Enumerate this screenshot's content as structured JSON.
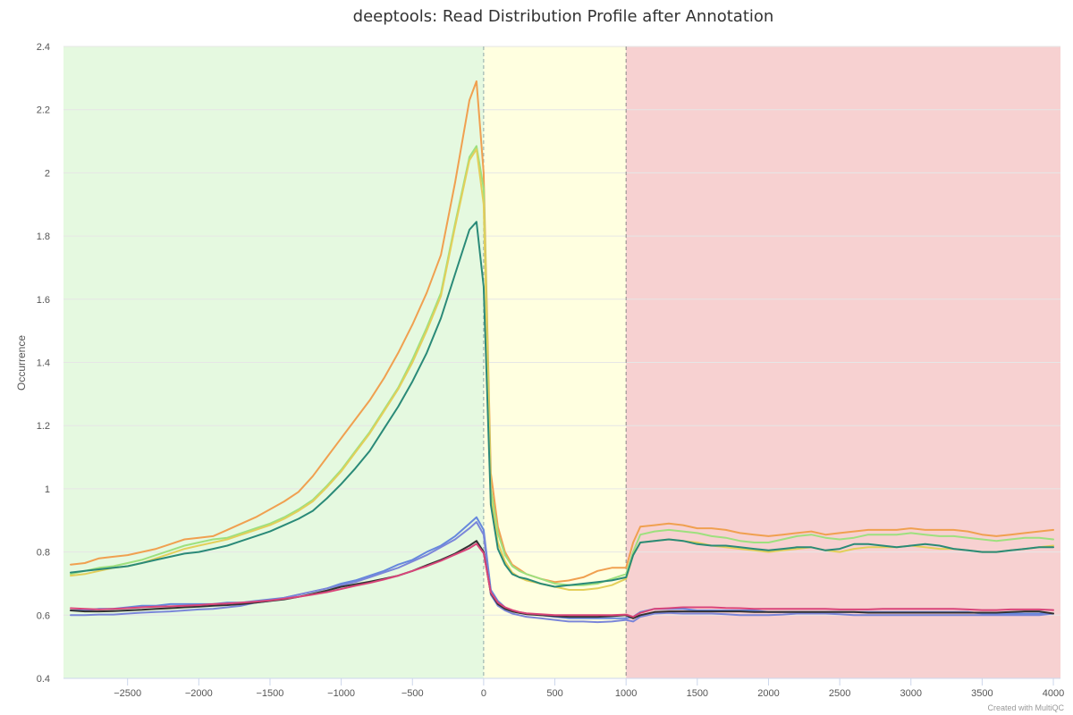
{
  "chart_data": {
    "type": "line",
    "title": "deeptools: Read Distribution Profile after Annotation",
    "xlabel": "",
    "ylabel": "Occurrence",
    "credit": "Created with MultiQC",
    "xlim": [
      -2950,
      4050
    ],
    "ylim": [
      0.4,
      2.4
    ],
    "x_ticks": [
      -2500,
      -2000,
      -1500,
      -1000,
      -500,
      0,
      500,
      1000,
      1500,
      2000,
      2500,
      3000,
      3500,
      4000
    ],
    "y_ticks": [
      0.4,
      0.6,
      0.8,
      1,
      1.2,
      1.4,
      1.6,
      1.8,
      2,
      2.2,
      2.4
    ],
    "grid": true,
    "legend": "none",
    "plot_bands": [
      {
        "from": -2950,
        "to": 0,
        "color": "#e5f9e0"
      },
      {
        "from": 0,
        "to": 1000,
        "color": "#ffffe0"
      },
      {
        "from": 1000,
        "to": 4050,
        "color": "#f7d1d1"
      }
    ],
    "plot_lines": [
      {
        "value": 0,
        "color": "#8fa8a8",
        "dash": "dashed"
      },
      {
        "value": 1000,
        "color": "#8a8a8a",
        "dash": "dashed"
      }
    ],
    "x": [
      -2900,
      -2800,
      -2700,
      -2600,
      -2500,
      -2400,
      -2300,
      -2200,
      -2100,
      -2000,
      -1900,
      -1800,
      -1700,
      -1600,
      -1500,
      -1400,
      -1300,
      -1200,
      -1100,
      -1000,
      -900,
      -800,
      -700,
      -600,
      -500,
      -400,
      -300,
      -200,
      -100,
      -50,
      0,
      50,
      100,
      150,
      200,
      250,
      300,
      400,
      500,
      600,
      700,
      800,
      900,
      1000,
      1050,
      1100,
      1200,
      1300,
      1400,
      1500,
      1600,
      1700,
      1800,
      1900,
      2000,
      2100,
      2200,
      2300,
      2400,
      2500,
      2600,
      2700,
      2800,
      2900,
      3000,
      3100,
      3200,
      3300,
      3400,
      3500,
      3600,
      3700,
      3800,
      3900,
      4000
    ],
    "series": [
      {
        "color": "#f0a050",
        "values": [
          0.76,
          0.765,
          0.78,
          0.785,
          0.79,
          0.8,
          0.81,
          0.825,
          0.84,
          0.845,
          0.85,
          0.87,
          0.89,
          0.91,
          0.935,
          0.96,
          0.99,
          1.04,
          1.1,
          1.16,
          1.22,
          1.28,
          1.35,
          1.43,
          1.52,
          1.62,
          1.74,
          1.97,
          2.23,
          2.29,
          2.0,
          1.05,
          0.88,
          0.8,
          0.76,
          0.745,
          0.73,
          0.715,
          0.705,
          0.71,
          0.72,
          0.74,
          0.75,
          0.75,
          0.83,
          0.88,
          0.885,
          0.89,
          0.885,
          0.875,
          0.875,
          0.87,
          0.86,
          0.855,
          0.85,
          0.855,
          0.86,
          0.865,
          0.855,
          0.86,
          0.865,
          0.87,
          0.87,
          0.87,
          0.875,
          0.87,
          0.87,
          0.87,
          0.865,
          0.855,
          0.85,
          0.855,
          0.86,
          0.865,
          0.87
        ]
      },
      {
        "color": "#9ee07e",
        "values": [
          0.73,
          0.74,
          0.75,
          0.755,
          0.765,
          0.775,
          0.79,
          0.805,
          0.82,
          0.83,
          0.84,
          0.845,
          0.86,
          0.875,
          0.89,
          0.91,
          0.935,
          0.965,
          1.01,
          1.06,
          1.12,
          1.18,
          1.25,
          1.32,
          1.41,
          1.51,
          1.62,
          1.84,
          2.05,
          2.085,
          1.95,
          1.0,
          0.86,
          0.79,
          0.755,
          0.74,
          0.73,
          0.715,
          0.7,
          0.695,
          0.695,
          0.7,
          0.715,
          0.73,
          0.8,
          0.855,
          0.865,
          0.87,
          0.865,
          0.86,
          0.85,
          0.845,
          0.835,
          0.83,
          0.83,
          0.84,
          0.85,
          0.855,
          0.845,
          0.84,
          0.845,
          0.855,
          0.855,
          0.855,
          0.86,
          0.855,
          0.85,
          0.85,
          0.845,
          0.84,
          0.835,
          0.84,
          0.845,
          0.845,
          0.84
        ]
      },
      {
        "color": "#e3cf5a",
        "values": [
          0.725,
          0.73,
          0.74,
          0.75,
          0.755,
          0.765,
          0.78,
          0.795,
          0.81,
          0.82,
          0.83,
          0.84,
          0.855,
          0.87,
          0.885,
          0.905,
          0.93,
          0.96,
          1.005,
          1.055,
          1.115,
          1.175,
          1.245,
          1.315,
          1.4,
          1.5,
          1.61,
          1.83,
          2.04,
          2.075,
          1.9,
          0.97,
          0.83,
          0.77,
          0.735,
          0.72,
          0.71,
          0.7,
          0.69,
          0.68,
          0.68,
          0.685,
          0.695,
          0.715,
          0.79,
          0.83,
          0.835,
          0.84,
          0.835,
          0.83,
          0.82,
          0.815,
          0.81,
          0.805,
          0.8,
          0.805,
          0.81,
          0.815,
          0.805,
          0.8,
          0.81,
          0.815,
          0.815,
          0.815,
          0.82,
          0.815,
          0.81,
          0.81,
          0.805,
          0.8,
          0.8,
          0.805,
          0.81,
          0.815,
          0.82
        ]
      },
      {
        "color": "#2a8a78",
        "values": [
          0.735,
          0.74,
          0.745,
          0.75,
          0.755,
          0.765,
          0.775,
          0.785,
          0.795,
          0.8,
          0.81,
          0.82,
          0.835,
          0.85,
          0.865,
          0.885,
          0.905,
          0.93,
          0.97,
          1.015,
          1.065,
          1.12,
          1.19,
          1.26,
          1.34,
          1.43,
          1.54,
          1.68,
          1.82,
          1.845,
          1.64,
          0.95,
          0.81,
          0.76,
          0.73,
          0.72,
          0.715,
          0.7,
          0.69,
          0.695,
          0.7,
          0.705,
          0.71,
          0.72,
          0.79,
          0.83,
          0.835,
          0.84,
          0.835,
          0.825,
          0.82,
          0.82,
          0.815,
          0.81,
          0.805,
          0.81,
          0.815,
          0.815,
          0.805,
          0.81,
          0.825,
          0.825,
          0.82,
          0.815,
          0.82,
          0.825,
          0.82,
          0.81,
          0.805,
          0.8,
          0.8,
          0.805,
          0.81,
          0.815,
          0.815
        ]
      },
      {
        "color": "#6688dd",
        "values": [
          0.615,
          0.615,
          0.62,
          0.62,
          0.625,
          0.63,
          0.63,
          0.635,
          0.635,
          0.635,
          0.635,
          0.64,
          0.64,
          0.645,
          0.65,
          0.655,
          0.665,
          0.675,
          0.685,
          0.7,
          0.71,
          0.725,
          0.74,
          0.76,
          0.775,
          0.8,
          0.82,
          0.85,
          0.89,
          0.91,
          0.87,
          0.68,
          0.645,
          0.625,
          0.615,
          0.61,
          0.605,
          0.6,
          0.595,
          0.59,
          0.59,
          0.59,
          0.59,
          0.59,
          0.595,
          0.61,
          0.62,
          0.62,
          0.62,
          0.615,
          0.615,
          0.615,
          0.615,
          0.615,
          0.61,
          0.61,
          0.61,
          0.61,
          0.61,
          0.61,
          0.61,
          0.61,
          0.61,
          0.61,
          0.61,
          0.61,
          0.61,
          0.61,
          0.61,
          0.605,
          0.605,
          0.605,
          0.605,
          0.605,
          0.605
        ]
      },
      {
        "color": "#7b86d9",
        "values": [
          0.6,
          0.6,
          0.602,
          0.602,
          0.605,
          0.608,
          0.61,
          0.612,
          0.615,
          0.618,
          0.62,
          0.625,
          0.63,
          0.64,
          0.645,
          0.655,
          0.665,
          0.675,
          0.685,
          0.695,
          0.705,
          0.72,
          0.735,
          0.75,
          0.77,
          0.79,
          0.815,
          0.84,
          0.875,
          0.895,
          0.855,
          0.665,
          0.63,
          0.615,
          0.605,
          0.6,
          0.595,
          0.59,
          0.585,
          0.58,
          0.58,
          0.578,
          0.58,
          0.585,
          0.58,
          0.595,
          0.605,
          0.607,
          0.605,
          0.605,
          0.605,
          0.603,
          0.6,
          0.6,
          0.6,
          0.602,
          0.605,
          0.605,
          0.605,
          0.603,
          0.6,
          0.6,
          0.6,
          0.6,
          0.6,
          0.6,
          0.6,
          0.6,
          0.6,
          0.6,
          0.6,
          0.6,
          0.6,
          0.6,
          0.605
        ]
      },
      {
        "color": "#333333",
        "values": [
          0.615,
          0.612,
          0.612,
          0.613,
          0.615,
          0.617,
          0.62,
          0.622,
          0.625,
          0.627,
          0.63,
          0.632,
          0.635,
          0.64,
          0.645,
          0.65,
          0.658,
          0.668,
          0.678,
          0.69,
          0.698,
          0.706,
          0.715,
          0.725,
          0.74,
          0.758,
          0.775,
          0.795,
          0.82,
          0.835,
          0.8,
          0.67,
          0.635,
          0.62,
          0.612,
          0.607,
          0.603,
          0.6,
          0.597,
          0.595,
          0.595,
          0.595,
          0.597,
          0.6,
          0.59,
          0.6,
          0.61,
          0.612,
          0.612,
          0.612,
          0.612,
          0.612,
          0.612,
          0.61,
          0.61,
          0.61,
          0.61,
          0.61,
          0.61,
          0.61,
          0.61,
          0.608,
          0.608,
          0.608,
          0.608,
          0.608,
          0.608,
          0.608,
          0.608,
          0.608,
          0.608,
          0.61,
          0.612,
          0.612,
          0.605
        ]
      },
      {
        "color": "#d9457a",
        "values": [
          0.622,
          0.62,
          0.618,
          0.62,
          0.622,
          0.625,
          0.627,
          0.628,
          0.63,
          0.632,
          0.635,
          0.637,
          0.64,
          0.643,
          0.647,
          0.652,
          0.658,
          0.665,
          0.673,
          0.683,
          0.693,
          0.702,
          0.713,
          0.725,
          0.74,
          0.755,
          0.772,
          0.792,
          0.812,
          0.826,
          0.796,
          0.672,
          0.64,
          0.625,
          0.616,
          0.61,
          0.606,
          0.603,
          0.6,
          0.6,
          0.6,
          0.6,
          0.6,
          0.602,
          0.595,
          0.607,
          0.62,
          0.622,
          0.625,
          0.625,
          0.625,
          0.623,
          0.622,
          0.62,
          0.62,
          0.62,
          0.62,
          0.62,
          0.62,
          0.618,
          0.618,
          0.618,
          0.62,
          0.62,
          0.62,
          0.62,
          0.62,
          0.62,
          0.618,
          0.616,
          0.616,
          0.618,
          0.618,
          0.618,
          0.616
        ]
      }
    ]
  }
}
